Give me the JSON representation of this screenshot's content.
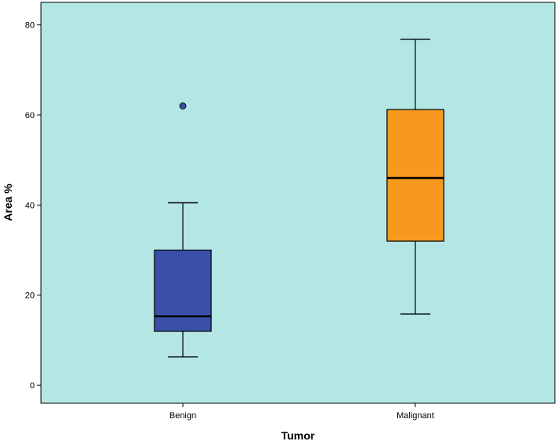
{
  "chart_data": {
    "type": "boxplot",
    "title": "",
    "xlabel": "Tumor",
    "ylabel": "Area %",
    "ylim": [
      -4,
      85
    ],
    "yticks": [
      0,
      20,
      40,
      60,
      80
    ],
    "grid": false,
    "background_color": "#b4e6e6",
    "categories": [
      "Benign",
      "Malignant"
    ],
    "boxes": [
      {
        "category": "Benign",
        "whisker_low": 6.3,
        "q1": 12.0,
        "median": 15.3,
        "q3": 30.0,
        "whisker_high": 40.5,
        "outliers": [
          62.0
        ],
        "color": "#3a50a8"
      },
      {
        "category": "Malignant",
        "whisker_low": 15.8,
        "q1": 32.0,
        "median": 46.0,
        "q3": 61.2,
        "whisker_high": 76.8,
        "outliers": [],
        "color": "#f7991e"
      }
    ]
  }
}
